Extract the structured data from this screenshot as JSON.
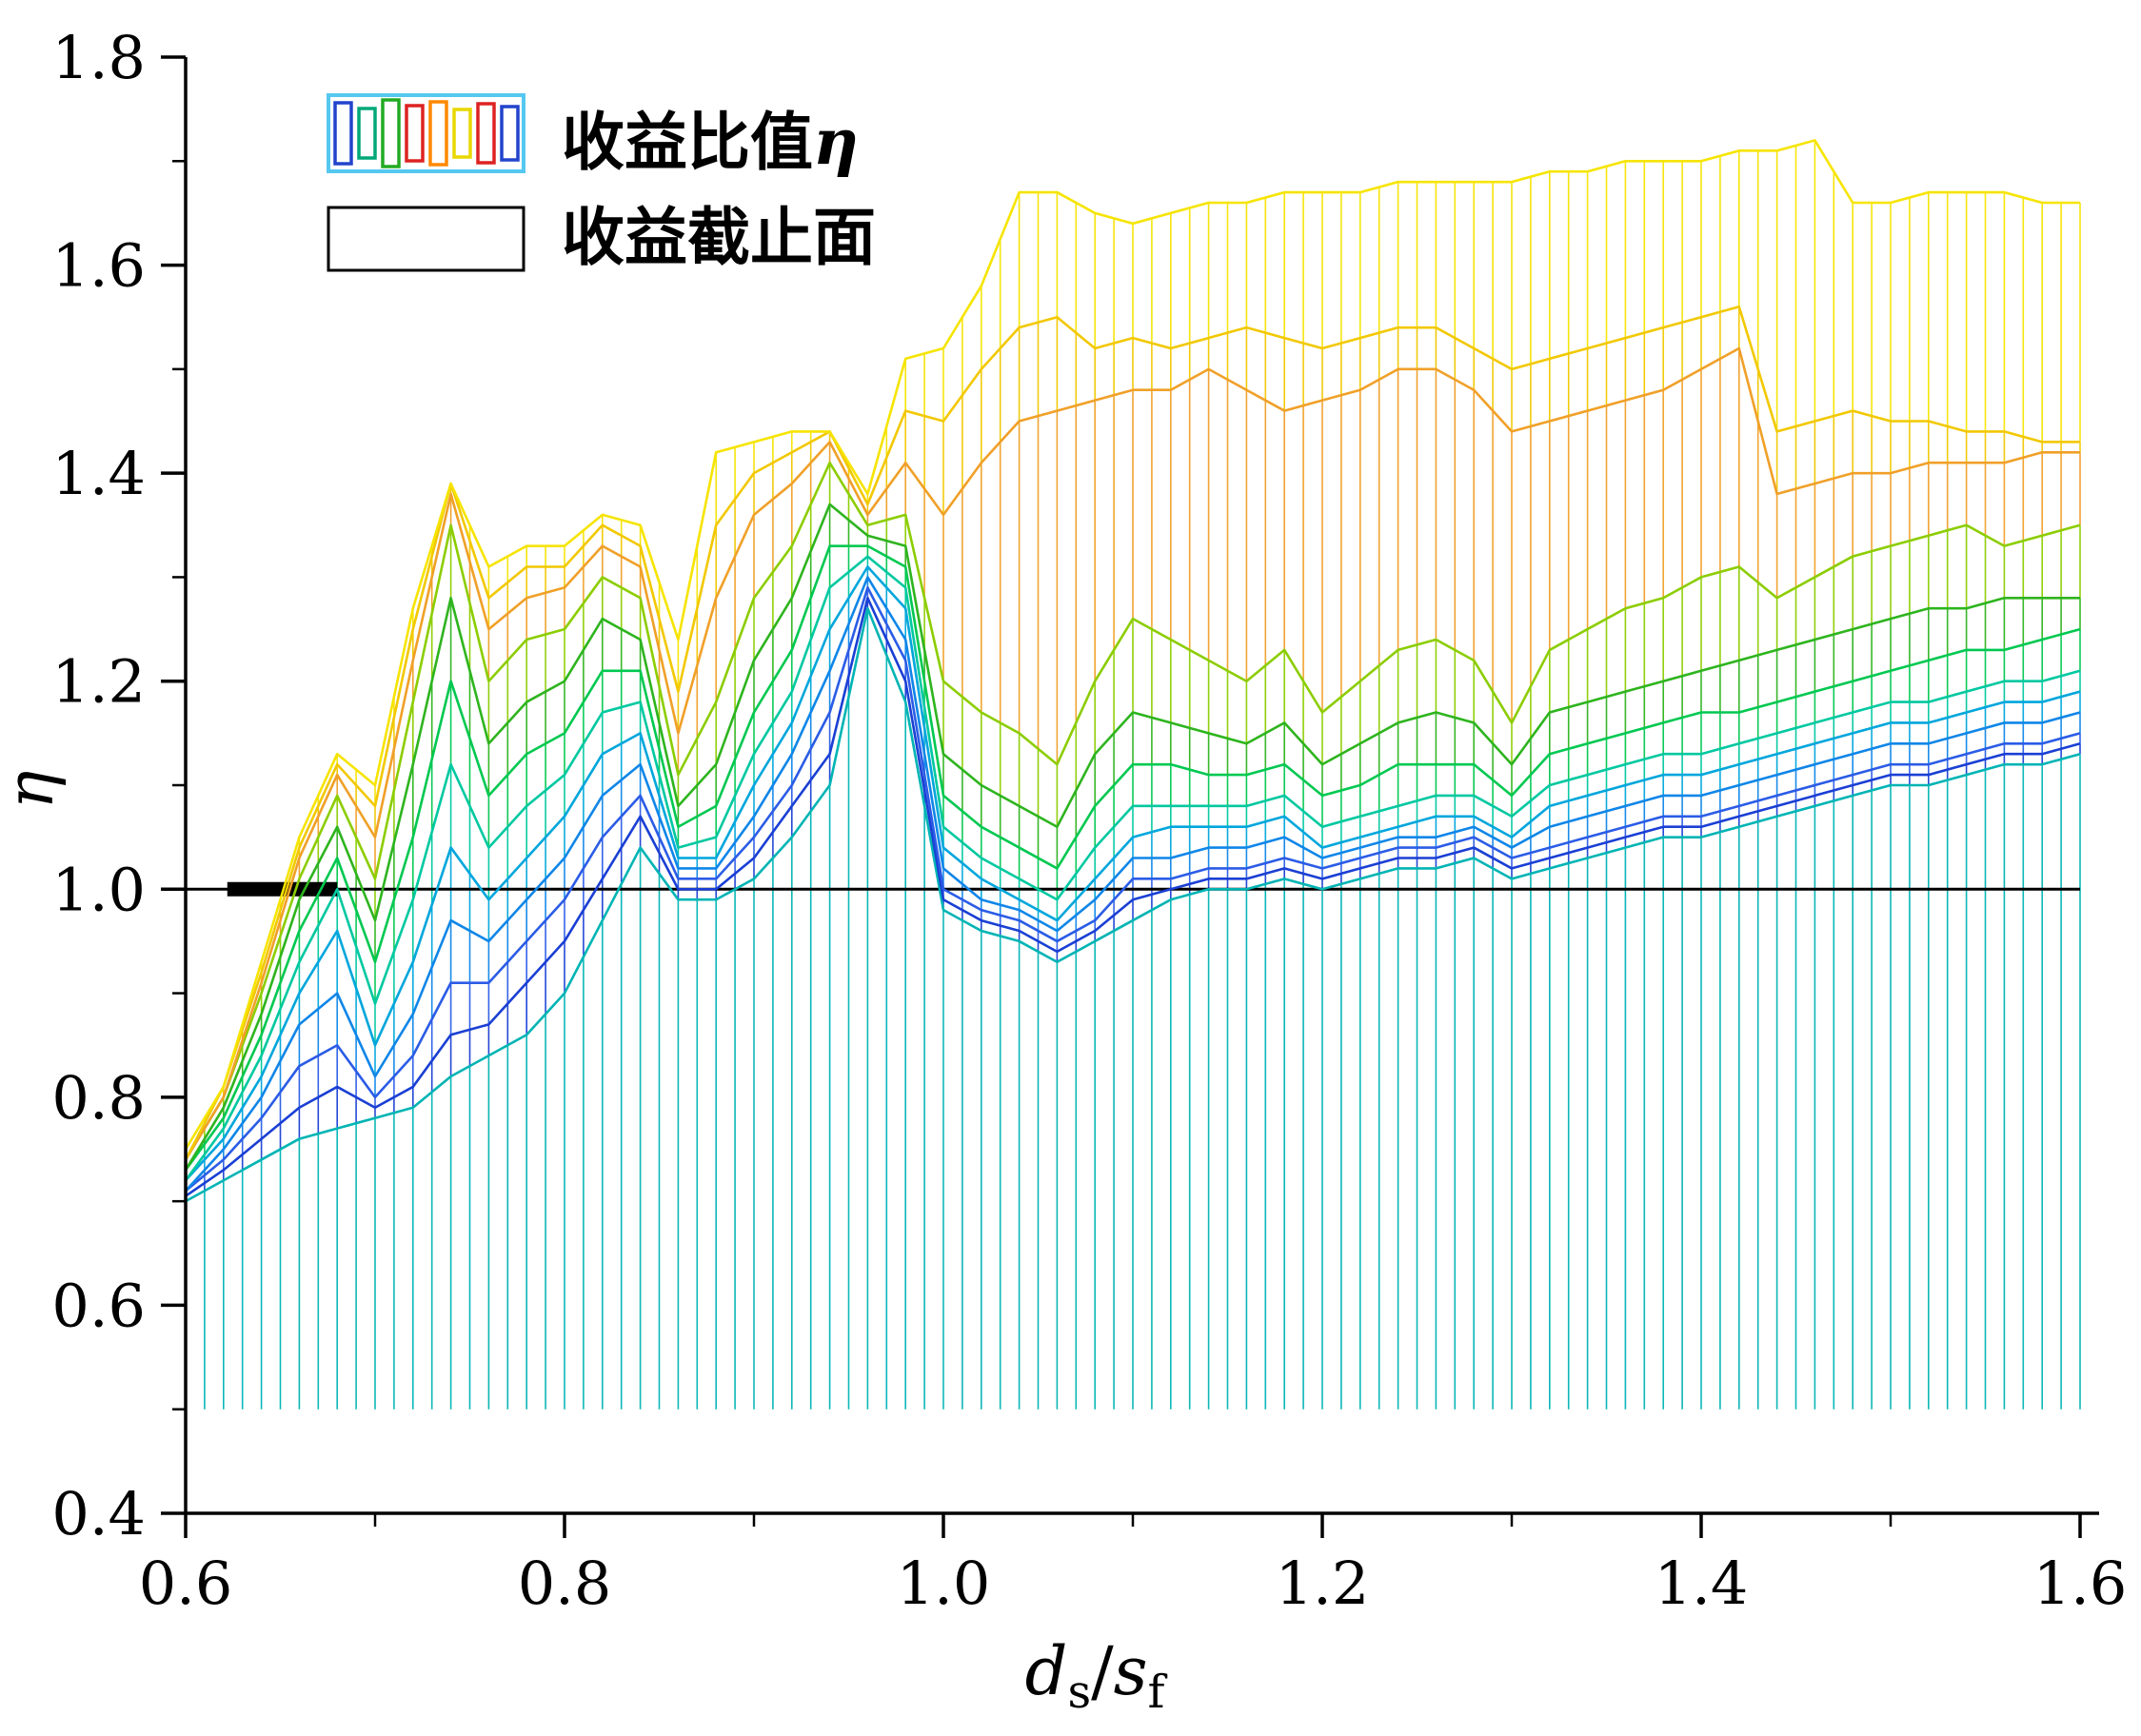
{
  "legend": {
    "item1_text": "收益比值",
    "item1_symbol": "η",
    "item2_text": "收益截止面",
    "hatch_icon_frame_color": "#55c8f0",
    "hatch_icon_bar_colors": [
      "#2244cc",
      "#00a878",
      "#22aa22",
      "#dd2222",
      "#ff8800",
      "#e8d800",
      "#dd2222",
      "#2244cc"
    ]
  },
  "axes": {
    "x": {
      "label_parts": {
        "var1": "d",
        "sub1": "s",
        "slash": "/",
        "var2": "s",
        "sub2": "f"
      },
      "tick_labels": [
        "0.6",
        "0.8",
        "1.0",
        "1.2",
        "1.4",
        "1.6"
      ],
      "tick_values": [
        0.6,
        0.8,
        1.0,
        1.2,
        1.4,
        1.6
      ],
      "minor_tick_values": [
        0.7,
        0.9,
        1.1,
        1.3,
        1.5
      ],
      "range": [
        0.6,
        1.6
      ]
    },
    "y": {
      "label": "η",
      "tick_labels": [
        "0.4",
        "0.6",
        "0.8",
        "1.0",
        "1.2",
        "1.4",
        "1.6",
        "1.8"
      ],
      "tick_values": [
        0.4,
        0.6,
        0.8,
        1.0,
        1.2,
        1.4,
        1.6,
        1.8
      ],
      "minor_tick_values": [
        0.5,
        0.7,
        0.9,
        1.1,
        1.3,
        1.5,
        1.7
      ],
      "range": [
        0.4,
        1.8
      ]
    }
  },
  "chart_data": {
    "type": "line",
    "title": "",
    "xlabel": "ds/sf",
    "ylabel": "η",
    "xlim": [
      0.6,
      1.6
    ],
    "ylim": [
      0.4,
      1.8
    ],
    "grid": false,
    "legend_position": "top-left",
    "hatch_base": 0.5,
    "cutoff_plane": {
      "y": 1.0,
      "bold_segment_x": [
        0.622,
        0.68
      ],
      "label": "收益截止面"
    },
    "x": [
      0.6,
      0.62,
      0.64,
      0.66,
      0.68,
      0.7,
      0.72,
      0.74,
      0.76,
      0.78,
      0.8,
      0.82,
      0.84,
      0.86,
      0.88,
      0.9,
      0.92,
      0.94,
      0.96,
      0.98,
      1.0,
      1.02,
      1.04,
      1.06,
      1.08,
      1.1,
      1.12,
      1.14,
      1.16,
      1.18,
      1.2,
      1.22,
      1.24,
      1.26,
      1.28,
      1.3,
      1.32,
      1.34,
      1.36,
      1.38,
      1.4,
      1.42,
      1.44,
      1.46,
      1.48,
      1.5,
      1.52,
      1.54,
      1.56,
      1.58,
      1.6
    ],
    "series": [
      {
        "name": "eta-curve-01",
        "color": "#00b4b4",
        "values": [
          0.7,
          0.72,
          0.74,
          0.76,
          0.77,
          0.78,
          0.79,
          0.82,
          0.84,
          0.86,
          0.9,
          0.97,
          1.04,
          0.99,
          0.99,
          1.01,
          1.05,
          1.1,
          1.27,
          1.18,
          0.98,
          0.96,
          0.95,
          0.93,
          0.95,
          0.97,
          0.99,
          1.0,
          1.0,
          1.01,
          1.0,
          1.01,
          1.02,
          1.02,
          1.03,
          1.01,
          1.02,
          1.03,
          1.04,
          1.05,
          1.05,
          1.06,
          1.07,
          1.08,
          1.09,
          1.1,
          1.1,
          1.11,
          1.12,
          1.12,
          1.13
        ]
      },
      {
        "name": "eta-curve-02",
        "color": "#1a3fd4",
        "values": [
          0.705,
          0.73,
          0.76,
          0.79,
          0.81,
          0.79,
          0.81,
          0.86,
          0.87,
          0.91,
          0.95,
          1.01,
          1.07,
          1.0,
          1.0,
          1.03,
          1.08,
          1.13,
          1.28,
          1.2,
          0.99,
          0.97,
          0.96,
          0.94,
          0.96,
          0.99,
          1.0,
          1.01,
          1.01,
          1.02,
          1.01,
          1.02,
          1.03,
          1.03,
          1.04,
          1.02,
          1.03,
          1.04,
          1.05,
          1.06,
          1.06,
          1.07,
          1.08,
          1.09,
          1.1,
          1.11,
          1.11,
          1.12,
          1.13,
          1.13,
          1.14
        ]
      },
      {
        "name": "eta-curve-03",
        "color": "#2b5ce6",
        "values": [
          0.71,
          0.74,
          0.78,
          0.83,
          0.85,
          0.8,
          0.84,
          0.91,
          0.91,
          0.95,
          0.99,
          1.05,
          1.09,
          1.01,
          1.01,
          1.05,
          1.1,
          1.17,
          1.29,
          1.22,
          1.0,
          0.98,
          0.97,
          0.95,
          0.97,
          1.01,
          1.01,
          1.02,
          1.02,
          1.03,
          1.02,
          1.03,
          1.04,
          1.04,
          1.05,
          1.03,
          1.04,
          1.05,
          1.06,
          1.07,
          1.07,
          1.08,
          1.09,
          1.1,
          1.11,
          1.12,
          1.12,
          1.13,
          1.14,
          1.14,
          1.15
        ]
      },
      {
        "name": "eta-curve-04",
        "color": "#0f86e8",
        "values": [
          0.71,
          0.75,
          0.8,
          0.87,
          0.9,
          0.82,
          0.88,
          0.97,
          0.95,
          0.99,
          1.03,
          1.09,
          1.12,
          1.02,
          1.02,
          1.07,
          1.13,
          1.21,
          1.3,
          1.24,
          1.02,
          0.99,
          0.98,
          0.96,
          0.99,
          1.03,
          1.03,
          1.04,
          1.04,
          1.05,
          1.03,
          1.04,
          1.05,
          1.05,
          1.06,
          1.04,
          1.06,
          1.07,
          1.08,
          1.09,
          1.09,
          1.1,
          1.11,
          1.12,
          1.13,
          1.14,
          1.14,
          1.15,
          1.16,
          1.16,
          1.17
        ]
      },
      {
        "name": "eta-curve-05",
        "color": "#00a6dc",
        "values": [
          0.72,
          0.76,
          0.82,
          0.9,
          0.96,
          0.85,
          0.93,
          1.04,
          0.99,
          1.03,
          1.07,
          1.13,
          1.15,
          1.03,
          1.03,
          1.1,
          1.16,
          1.25,
          1.31,
          1.27,
          1.04,
          1.01,
          0.99,
          0.97,
          1.01,
          1.05,
          1.06,
          1.06,
          1.06,
          1.07,
          1.04,
          1.05,
          1.06,
          1.07,
          1.07,
          1.05,
          1.08,
          1.09,
          1.1,
          1.11,
          1.11,
          1.12,
          1.13,
          1.14,
          1.15,
          1.16,
          1.16,
          1.17,
          1.18,
          1.18,
          1.19
        ]
      },
      {
        "name": "eta-curve-06",
        "color": "#00c8a0",
        "values": [
          0.72,
          0.77,
          0.84,
          0.93,
          1.0,
          0.89,
          0.99,
          1.12,
          1.04,
          1.08,
          1.11,
          1.17,
          1.18,
          1.04,
          1.05,
          1.13,
          1.19,
          1.29,
          1.32,
          1.29,
          1.06,
          1.03,
          1.01,
          0.99,
          1.04,
          1.08,
          1.08,
          1.08,
          1.08,
          1.09,
          1.06,
          1.07,
          1.08,
          1.09,
          1.09,
          1.07,
          1.1,
          1.11,
          1.12,
          1.13,
          1.13,
          1.14,
          1.15,
          1.16,
          1.17,
          1.18,
          1.18,
          1.19,
          1.2,
          1.2,
          1.21
        ]
      },
      {
        "name": "eta-curve-07",
        "color": "#00c850",
        "values": [
          0.73,
          0.78,
          0.86,
          0.96,
          1.03,
          0.93,
          1.05,
          1.2,
          1.09,
          1.13,
          1.15,
          1.21,
          1.21,
          1.06,
          1.08,
          1.17,
          1.23,
          1.33,
          1.33,
          1.31,
          1.09,
          1.06,
          1.04,
          1.02,
          1.08,
          1.12,
          1.12,
          1.11,
          1.11,
          1.12,
          1.09,
          1.1,
          1.12,
          1.12,
          1.12,
          1.09,
          1.13,
          1.14,
          1.15,
          1.16,
          1.17,
          1.17,
          1.18,
          1.19,
          1.2,
          1.21,
          1.22,
          1.23,
          1.23,
          1.24,
          1.25
        ]
      },
      {
        "name": "eta-curve-08",
        "color": "#2eb41e",
        "values": [
          0.73,
          0.79,
          0.88,
          0.99,
          1.06,
          0.97,
          1.12,
          1.28,
          1.14,
          1.18,
          1.2,
          1.26,
          1.24,
          1.08,
          1.12,
          1.22,
          1.28,
          1.37,
          1.34,
          1.33,
          1.13,
          1.1,
          1.08,
          1.06,
          1.13,
          1.17,
          1.16,
          1.15,
          1.14,
          1.16,
          1.12,
          1.14,
          1.16,
          1.17,
          1.16,
          1.12,
          1.17,
          1.18,
          1.19,
          1.2,
          1.21,
          1.22,
          1.23,
          1.24,
          1.25,
          1.26,
          1.27,
          1.27,
          1.28,
          1.28,
          1.28
        ]
      },
      {
        "name": "eta-curve-09",
        "color": "#8ccd00",
        "values": [
          0.74,
          0.8,
          0.9,
          1.01,
          1.09,
          1.01,
          1.18,
          1.35,
          1.2,
          1.24,
          1.25,
          1.3,
          1.28,
          1.11,
          1.18,
          1.28,
          1.33,
          1.41,
          1.35,
          1.36,
          1.2,
          1.17,
          1.15,
          1.12,
          1.2,
          1.26,
          1.24,
          1.22,
          1.2,
          1.23,
          1.17,
          1.2,
          1.23,
          1.24,
          1.22,
          1.16,
          1.23,
          1.25,
          1.27,
          1.28,
          1.3,
          1.31,
          1.28,
          1.3,
          1.32,
          1.33,
          1.34,
          1.35,
          1.33,
          1.34,
          1.35
        ]
      },
      {
        "name": "eta-curve-10",
        "color": "#f0a028",
        "values": [
          0.74,
          0.8,
          0.91,
          1.03,
          1.11,
          1.05,
          1.22,
          1.38,
          1.25,
          1.28,
          1.29,
          1.33,
          1.31,
          1.15,
          1.28,
          1.36,
          1.39,
          1.43,
          1.36,
          1.41,
          1.36,
          1.41,
          1.45,
          1.46,
          1.47,
          1.48,
          1.48,
          1.5,
          1.48,
          1.46,
          1.47,
          1.48,
          1.5,
          1.5,
          1.48,
          1.44,
          1.45,
          1.46,
          1.47,
          1.48,
          1.5,
          1.52,
          1.38,
          1.39,
          1.4,
          1.4,
          1.41,
          1.41,
          1.41,
          1.42,
          1.42
        ]
      },
      {
        "name": "eta-curve-11",
        "color": "#f2c800",
        "values": [
          0.74,
          0.81,
          0.92,
          1.04,
          1.12,
          1.08,
          1.25,
          1.39,
          1.28,
          1.31,
          1.31,
          1.35,
          1.33,
          1.19,
          1.35,
          1.4,
          1.42,
          1.44,
          1.37,
          1.46,
          1.45,
          1.5,
          1.54,
          1.55,
          1.52,
          1.53,
          1.52,
          1.53,
          1.54,
          1.53,
          1.52,
          1.53,
          1.54,
          1.54,
          1.52,
          1.5,
          1.51,
          1.52,
          1.53,
          1.54,
          1.55,
          1.56,
          1.44,
          1.45,
          1.46,
          1.45,
          1.45,
          1.44,
          1.44,
          1.43,
          1.43
        ]
      },
      {
        "name": "eta-curve-12",
        "color": "#f6e400",
        "values": [
          0.75,
          0.81,
          0.93,
          1.05,
          1.13,
          1.1,
          1.27,
          1.39,
          1.31,
          1.33,
          1.33,
          1.36,
          1.35,
          1.24,
          1.42,
          1.43,
          1.44,
          1.44,
          1.38,
          1.51,
          1.52,
          1.58,
          1.67,
          1.67,
          1.65,
          1.64,
          1.65,
          1.66,
          1.66,
          1.67,
          1.67,
          1.67,
          1.68,
          1.68,
          1.68,
          1.68,
          1.69,
          1.69,
          1.7,
          1.7,
          1.7,
          1.71,
          1.71,
          1.72,
          1.66,
          1.66,
          1.67,
          1.67,
          1.67,
          1.66,
          1.66
        ]
      }
    ]
  }
}
